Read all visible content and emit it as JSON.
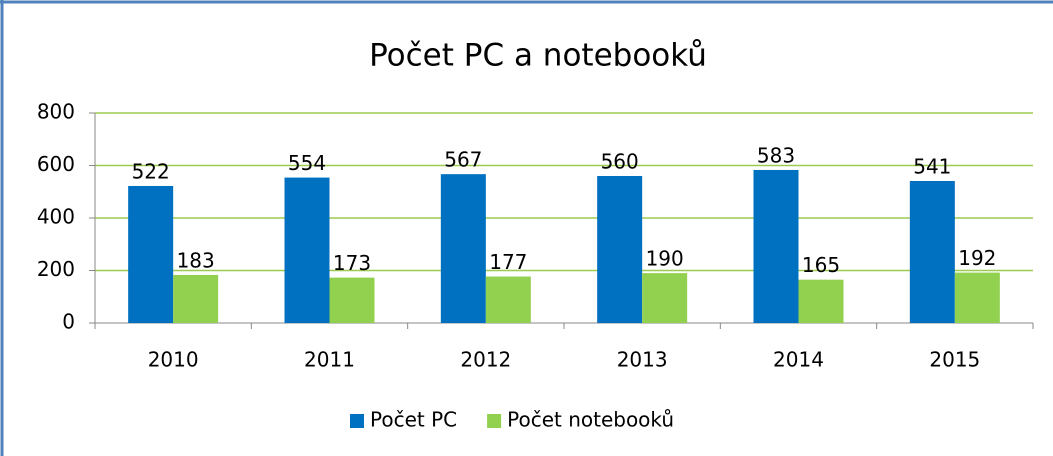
{
  "chart_data": {
    "type": "bar",
    "title": "Počet PC a notebooků",
    "categories": [
      "2010",
      "2011",
      "2012",
      "2013",
      "2014",
      "2015"
    ],
    "series": [
      {
        "name": "Počet PC",
        "color": "#0070c0",
        "values": [
          522,
          554,
          567,
          560,
          583,
          541
        ]
      },
      {
        "name": "Počet notebooků",
        "color": "#92d050",
        "values": [
          183,
          173,
          177,
          190,
          165,
          192
        ]
      }
    ],
    "ylim": [
      0,
      800
    ],
    "yticks": [
      0,
      200,
      400,
      600,
      800
    ],
    "grid": true,
    "legend": "bottom"
  }
}
